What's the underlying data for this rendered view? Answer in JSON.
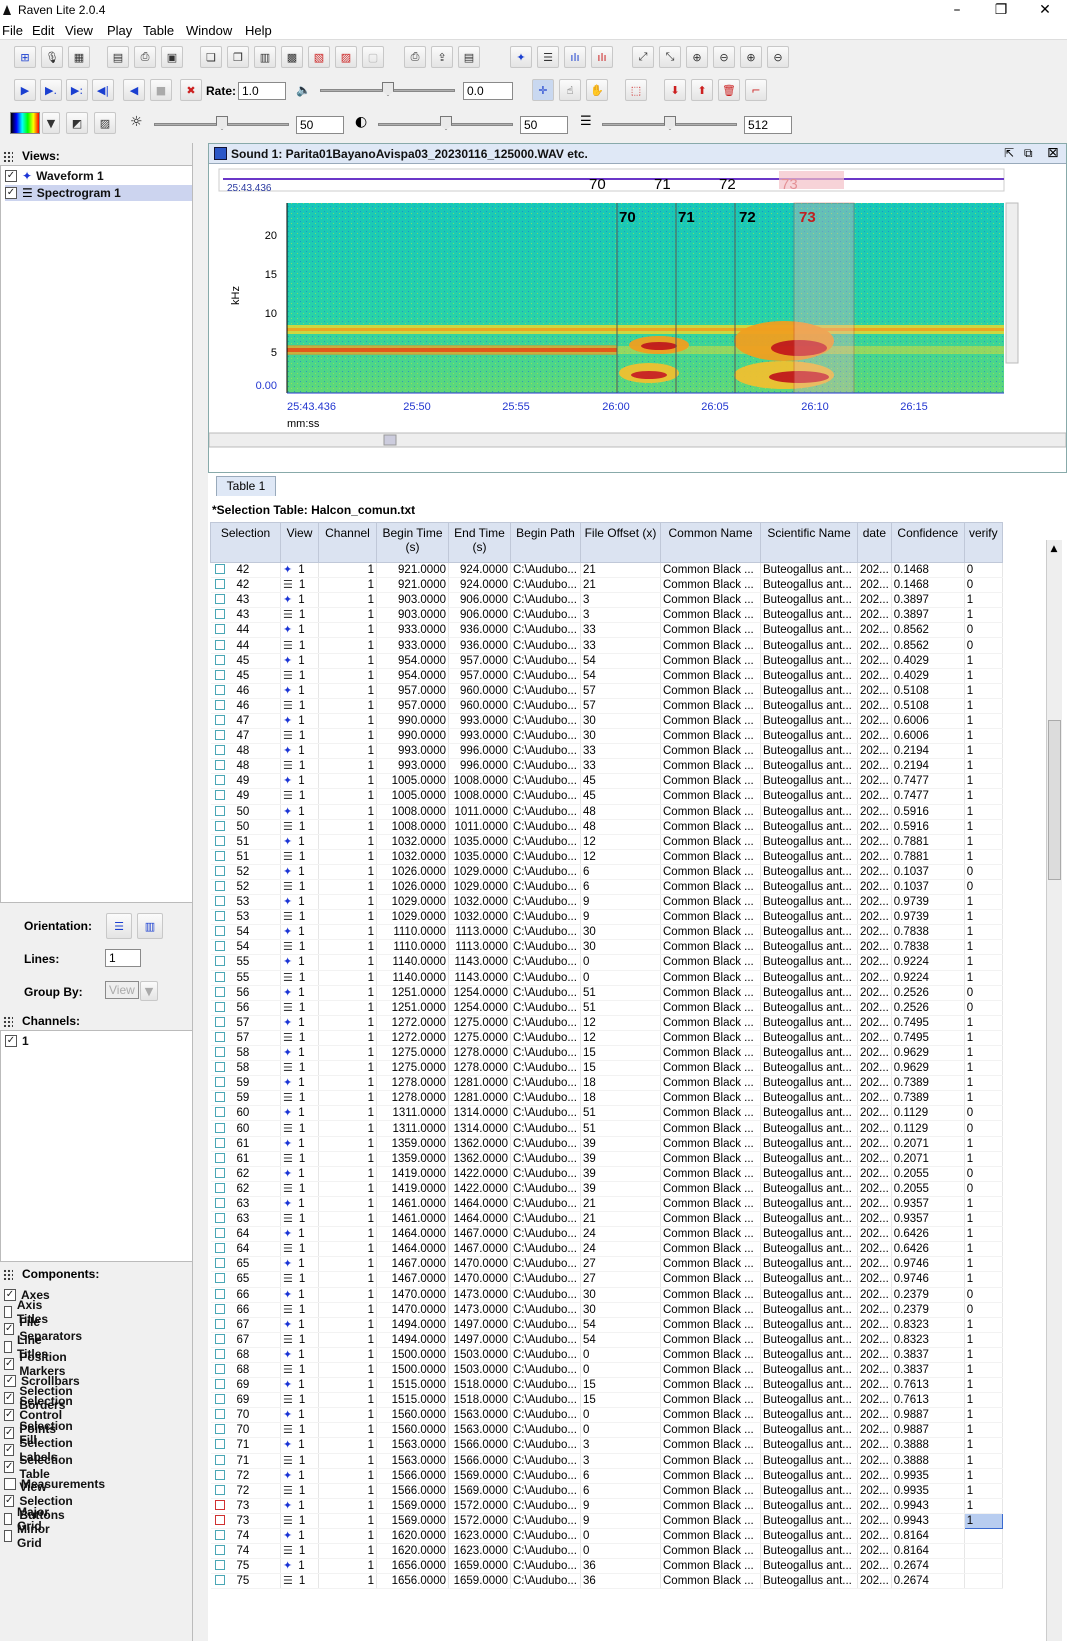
{
  "app": {
    "title": "Raven Lite 2.0.4"
  },
  "menu": [
    "File",
    "Edit",
    "View",
    "Play",
    "Table",
    "Window",
    "Help"
  ],
  "toolbar": {
    "rate_label": "Rate:",
    "rate_value": "1.0",
    "volume_value": "0.0",
    "brightness_value": "50",
    "contrast_value": "50",
    "resolution_value": "512"
  },
  "views": {
    "title": "Views:",
    "items": [
      {
        "label": "Waveform 1",
        "checked": true
      },
      {
        "label": "Spectrogram 1",
        "checked": true
      }
    ]
  },
  "orientation": {
    "label": "Orientation:"
  },
  "lines": {
    "label": "Lines:",
    "value": "1"
  },
  "group_by": {
    "label": "Group By:",
    "value": "View"
  },
  "channels": {
    "title": "Channels:",
    "items": [
      "1"
    ]
  },
  "components": {
    "title": "Components:",
    "items": [
      {
        "label": "Axes",
        "checked": true
      },
      {
        "label": "Axis Titles",
        "checked": false
      },
      {
        "label": "File Separators",
        "checked": true
      },
      {
        "label": "Line Titles",
        "checked": false
      },
      {
        "label": "Position Markers",
        "checked": true
      },
      {
        "label": "Scrollbars",
        "checked": true
      },
      {
        "label": "Selection Borders",
        "checked": true
      },
      {
        "label": "Selection Control Points",
        "checked": true
      },
      {
        "label": "Selection Fill",
        "checked": true
      },
      {
        "label": "Selection Labels",
        "checked": true
      },
      {
        "label": "Selection Table",
        "checked": true
      },
      {
        "label": "Measurements",
        "checked": false
      },
      {
        "label": "View Selection Buttons",
        "checked": true
      },
      {
        "label": "Major Grid",
        "checked": false
      },
      {
        "label": "Minor Grid",
        "checked": false
      }
    ]
  },
  "sound_window": {
    "title": "Sound 1: Parita01BayanoAvispa03_20230116_125000.WAV etc.",
    "overview_time": "25:43.436",
    "overview_labels": [
      "70",
      "71",
      "72",
      "73"
    ]
  },
  "spectrogram": {
    "y_unit": "kHz",
    "y_ticks": [
      "20",
      "15",
      "10",
      "5",
      "0.00"
    ],
    "x_ticks": [
      "25:43.436",
      "25:50",
      "25:55",
      "26:00",
      "26:05",
      "26:10",
      "26:15"
    ],
    "x_unit": "mm:ss",
    "selection_labels": [
      "70",
      "71",
      "72",
      "73"
    ]
  },
  "table": {
    "tab_label": "Table 1",
    "title": "*Selection Table: Halcon_comun.txt",
    "columns": [
      "Selection",
      "View",
      "Channel",
      "Begin Time (s)",
      "End Time (s)",
      "Begin Path",
      "File Offset (x)",
      "Common Name",
      "Scientific Name",
      "date",
      "Confidence",
      "verify"
    ],
    "common_name": "Common Black ...",
    "scientific_name": "Buteogallus ant...",
    "date": "202...",
    "begin_path": "C:\\Audubo...",
    "channel": "1",
    "view_num": "1",
    "rows": [
      [
        "42",
        "921.0000",
        "924.0000",
        "21",
        "0.1468",
        "0"
      ],
      [
        "43",
        "903.0000",
        "906.0000",
        "3",
        "0.3897",
        "1"
      ],
      [
        "44",
        "933.0000",
        "936.0000",
        "33",
        "0.8562",
        "0"
      ],
      [
        "45",
        "954.0000",
        "957.0000",
        "54",
        "0.4029",
        "1"
      ],
      [
        "46",
        "957.0000",
        "960.0000",
        "57",
        "0.5108",
        "1"
      ],
      [
        "47",
        "990.0000",
        "993.0000",
        "30",
        "0.6006",
        "1"
      ],
      [
        "48",
        "993.0000",
        "996.0000",
        "33",
        "0.2194",
        "1"
      ],
      [
        "49",
        "1005.0000",
        "1008.0000",
        "45",
        "0.7477",
        "1"
      ],
      [
        "50",
        "1008.0000",
        "1011.0000",
        "48",
        "0.5916",
        "1"
      ],
      [
        "51",
        "1032.0000",
        "1035.0000",
        "12",
        "0.7881",
        "1"
      ],
      [
        "52",
        "1026.0000",
        "1029.0000",
        "6",
        "0.1037",
        "0"
      ],
      [
        "53",
        "1029.0000",
        "1032.0000",
        "9",
        "0.9739",
        "1"
      ],
      [
        "54",
        "1110.0000",
        "1113.0000",
        "30",
        "0.7838",
        "1"
      ],
      [
        "55",
        "1140.0000",
        "1143.0000",
        "0",
        "0.9224",
        "1"
      ],
      [
        "56",
        "1251.0000",
        "1254.0000",
        "51",
        "0.2526",
        "0"
      ],
      [
        "57",
        "1272.0000",
        "1275.0000",
        "12",
        "0.7495",
        "1"
      ],
      [
        "58",
        "1275.0000",
        "1278.0000",
        "15",
        "0.9629",
        "1"
      ],
      [
        "59",
        "1278.0000",
        "1281.0000",
        "18",
        "0.7389",
        "1"
      ],
      [
        "60",
        "1311.0000",
        "1314.0000",
        "51",
        "0.1129",
        "0"
      ],
      [
        "61",
        "1359.0000",
        "1362.0000",
        "39",
        "0.2071",
        "1"
      ],
      [
        "62",
        "1419.0000",
        "1422.0000",
        "39",
        "0.2055",
        "0"
      ],
      [
        "63",
        "1461.0000",
        "1464.0000",
        "21",
        "0.9357",
        "1"
      ],
      [
        "64",
        "1464.0000",
        "1467.0000",
        "24",
        "0.6426",
        "1"
      ],
      [
        "65",
        "1467.0000",
        "1470.0000",
        "27",
        "0.9746",
        "1"
      ],
      [
        "66",
        "1470.0000",
        "1473.0000",
        "30",
        "0.2379",
        "0"
      ],
      [
        "67",
        "1494.0000",
        "1497.0000",
        "54",
        "0.8323",
        "1"
      ],
      [
        "68",
        "1500.0000",
        "1503.0000",
        "0",
        "0.3837",
        "1"
      ],
      [
        "69",
        "1515.0000",
        "1518.0000",
        "15",
        "0.7613",
        "1"
      ],
      [
        "70",
        "1560.0000",
        "1563.0000",
        "0",
        "0.9887",
        "1"
      ],
      [
        "71",
        "1563.0000",
        "1566.0000",
        "3",
        "0.3888",
        "1"
      ],
      [
        "72",
        "1566.0000",
        "1569.0000",
        "6",
        "0.9935",
        "1"
      ],
      [
        "73",
        "1569.0000",
        "1572.0000",
        "9",
        "0.9943",
        "1"
      ],
      [
        "74",
        "1620.0000",
        "1623.0000",
        "0",
        "0.8164",
        ""
      ],
      [
        "75",
        "1656.0000",
        "1659.0000",
        "36",
        "0.2674",
        ""
      ]
    ]
  }
}
